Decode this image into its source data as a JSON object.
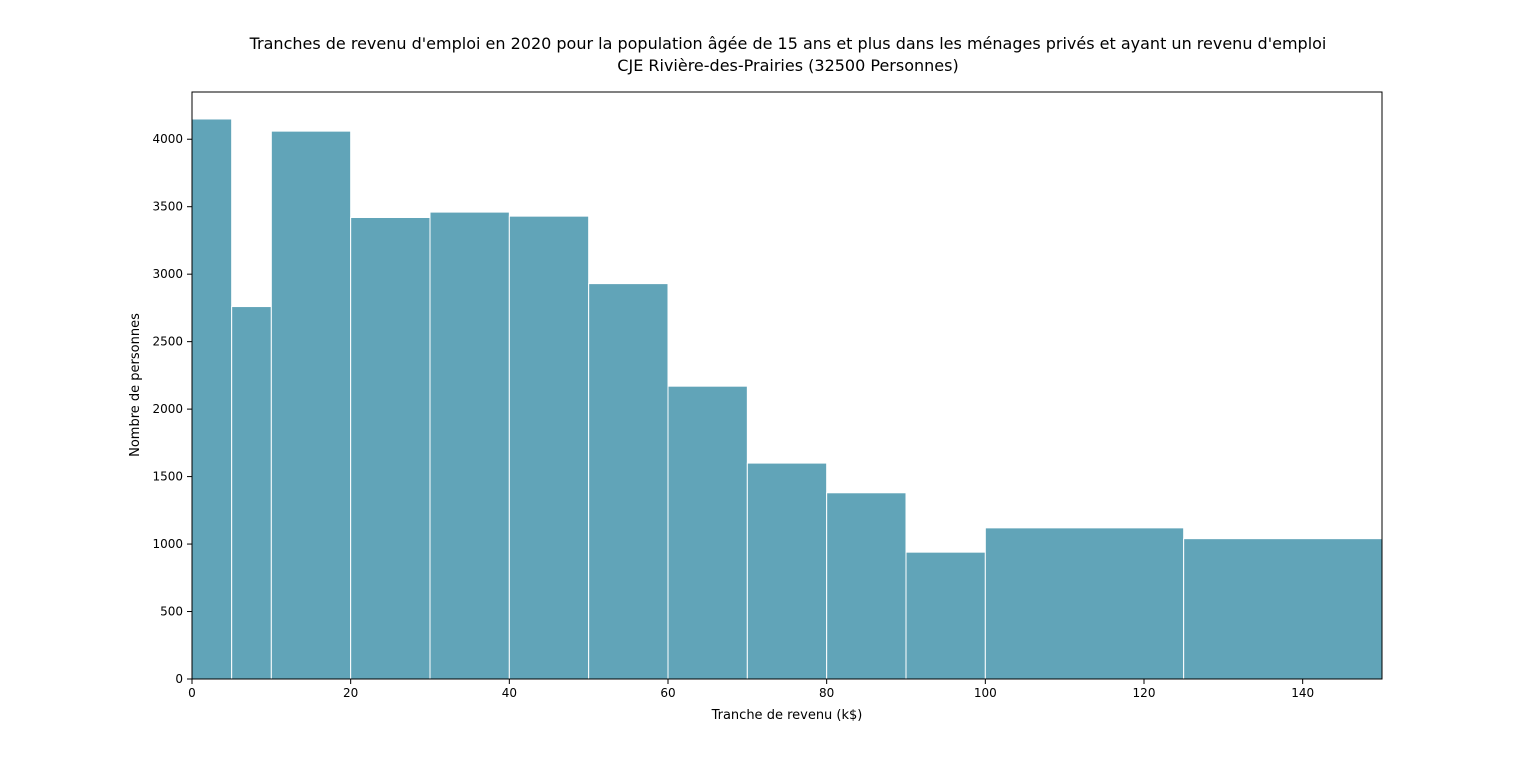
{
  "chart_data": {
    "type": "bar",
    "title": "Tranches de revenu d'emploi en 2020 pour la population âgée de 15 ans et plus dans les ménages privés et ayant un revenu d'emploi",
    "subtitle": "CJE Rivière-des-Prairies (32500 Personnes)",
    "xlabel": "Tranche de revenu (k$)",
    "ylabel": "Nombre de personnes",
    "xlim": [
      0,
      150
    ],
    "ylim": [
      0,
      4350
    ],
    "xticks": [
      "0",
      "20",
      "40",
      "60",
      "80",
      "100",
      "120",
      "140"
    ],
    "yticks": [
      "0",
      "500",
      "1000",
      "1500",
      "2000",
      "2500",
      "3000",
      "3500",
      "4000"
    ],
    "bar_color": "#61a4b8",
    "edge_color": "#ffffff",
    "grid": false,
    "bins": [
      {
        "start": 0,
        "end": 5,
        "value": 4150
      },
      {
        "start": 5,
        "end": 10,
        "value": 2760
      },
      {
        "start": 10,
        "end": 20,
        "value": 4060
      },
      {
        "start": 20,
        "end": 30,
        "value": 3420
      },
      {
        "start": 30,
        "end": 40,
        "value": 3460
      },
      {
        "start": 40,
        "end": 50,
        "value": 3430
      },
      {
        "start": 50,
        "end": 60,
        "value": 2930
      },
      {
        "start": 60,
        "end": 70,
        "value": 2170
      },
      {
        "start": 70,
        "end": 80,
        "value": 1600
      },
      {
        "start": 80,
        "end": 90,
        "value": 1380
      },
      {
        "start": 90,
        "end": 100,
        "value": 940
      },
      {
        "start": 100,
        "end": 125,
        "value": 1120
      },
      {
        "start": 125,
        "end": 150,
        "value": 1040
      }
    ]
  }
}
